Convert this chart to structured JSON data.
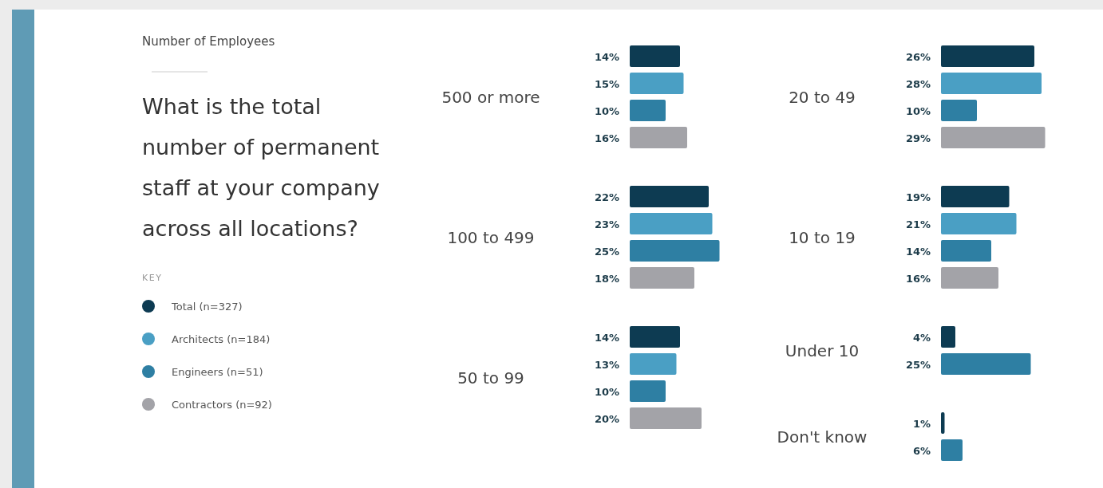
{
  "chart_data": [
    {
      "type": "other",
      "subtitle": "Number of Employees",
      "title": "What is the total number of permanent staff at your company across all locations?"
    },
    {
      "type": "bar",
      "orientation": "horizontal",
      "legend_title": "KEY",
      "legend": "left",
      "categories": [
        "500 or more",
        "100 to 499",
        "50 to 99"
      ],
      "series": [
        {
          "name": "Total (n=327)",
          "color": "#0d3b52",
          "values": [
            14,
            22,
            14
          ],
          "value_labels": [
            "14%",
            "22%",
            "14%"
          ]
        },
        {
          "name": "Architects (n=184)",
          "color": "#4a9fc4",
          "values": [
            15,
            23,
            13
          ],
          "value_labels": [
            "15%",
            "23%",
            "13%"
          ]
        },
        {
          "name": "Engineers (n=51)",
          "color": "#2e7fa3",
          "values": [
            10,
            25,
            10
          ],
          "value_labels": [
            "10%",
            "25%",
            "10%"
          ]
        },
        {
          "name": "Contractors (n=92)",
          "color": "#a3a3a8",
          "values": [
            16,
            18,
            20
          ],
          "value_labels": [
            "16%",
            "18%",
            "20%"
          ]
        }
      ]
    },
    {
      "type": "bar",
      "orientation": "horizontal",
      "categories": [
        "20 to 49",
        "10 to 19",
        "Under 10",
        "Don't know"
      ],
      "series": [
        {
          "color": "#0d3b52",
          "values": [
            26,
            19,
            4,
            1
          ],
          "value_labels": [
            "26%",
            "19%",
            "4%",
            "1%"
          ]
        },
        {
          "color": "#4a9fc4",
          "values": [
            28,
            21,
            null,
            null
          ],
          "value_labels": [
            "28%",
            "21%",
            null,
            null
          ]
        },
        {
          "color": "#2e7fa3",
          "values": [
            10,
            14,
            25,
            6
          ],
          "value_labels": [
            "10%",
            "14%",
            "25%",
            "6%"
          ]
        },
        {
          "color": "#a3a3a8",
          "values": [
            29,
            16,
            null,
            null
          ],
          "value_labels": [
            "29%",
            "16%",
            null,
            null
          ]
        }
      ]
    }
  ]
}
